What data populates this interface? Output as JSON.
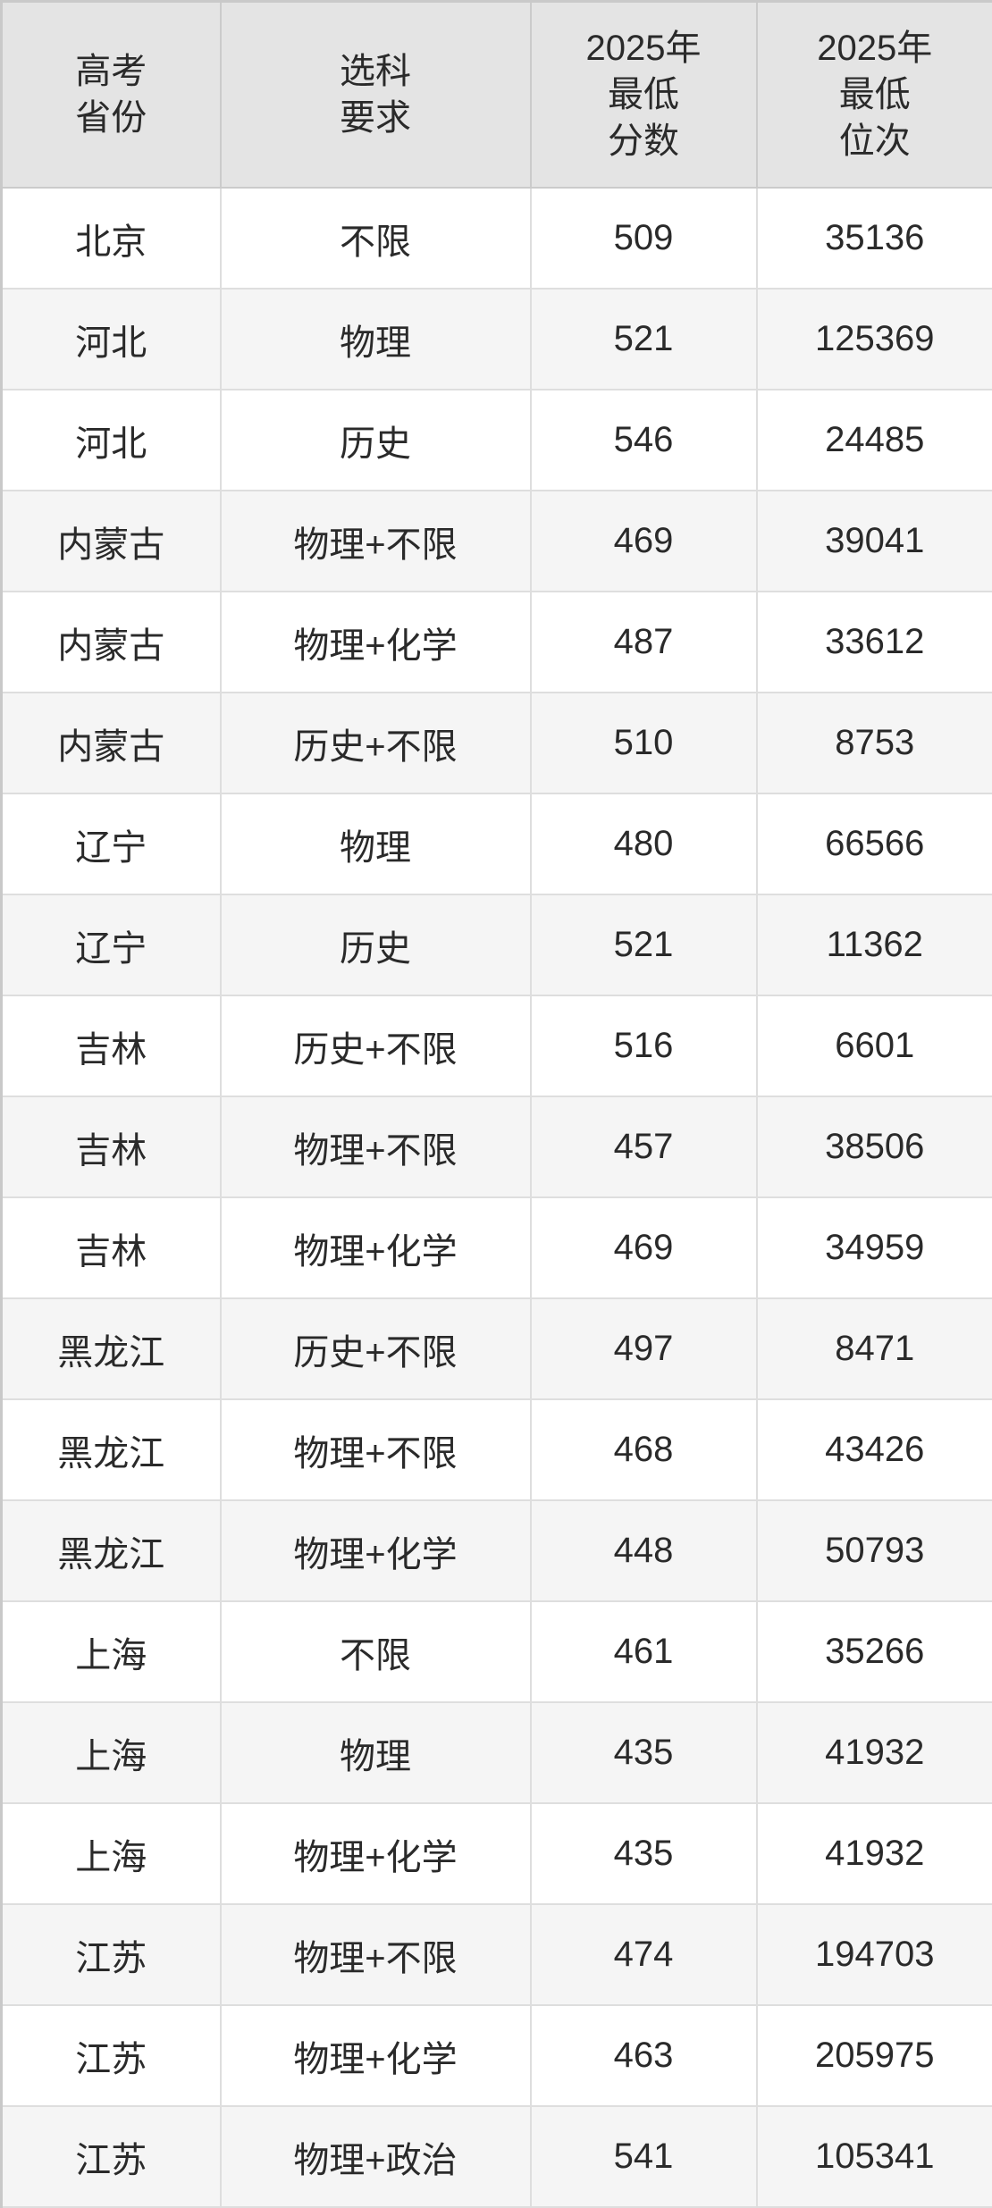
{
  "colors": {
    "header_bg": "#e4e4e4",
    "row_bg": "#ffffff",
    "row_alt_bg": "#f5f5f5",
    "outer_border": "#c9c9c9",
    "inner_border": "#dedede",
    "text": "#2a2a2a"
  },
  "table": {
    "headers": [
      {
        "id": "province",
        "label": "高考\n省份"
      },
      {
        "id": "subjects",
        "label": "选科\n要求"
      },
      {
        "id": "min_score_2025",
        "label": "2025年\n最低\n分数"
      },
      {
        "id": "min_rank_2025",
        "label": "2025年\n最低\n位次"
      }
    ],
    "rows": [
      {
        "province": "北京",
        "subjects": "不限",
        "min_score_2025": "509",
        "min_rank_2025": "35136"
      },
      {
        "province": "河北",
        "subjects": "物理",
        "min_score_2025": "521",
        "min_rank_2025": "125369"
      },
      {
        "province": "河北",
        "subjects": "历史",
        "min_score_2025": "546",
        "min_rank_2025": "24485"
      },
      {
        "province": "内蒙古",
        "subjects": "物理+不限",
        "min_score_2025": "469",
        "min_rank_2025": "39041"
      },
      {
        "province": "内蒙古",
        "subjects": "物理+化学",
        "min_score_2025": "487",
        "min_rank_2025": "33612"
      },
      {
        "province": "内蒙古",
        "subjects": "历史+不限",
        "min_score_2025": "510",
        "min_rank_2025": "8753"
      },
      {
        "province": "辽宁",
        "subjects": "物理",
        "min_score_2025": "480",
        "min_rank_2025": "66566"
      },
      {
        "province": "辽宁",
        "subjects": "历史",
        "min_score_2025": "521",
        "min_rank_2025": "11362"
      },
      {
        "province": "吉林",
        "subjects": "历史+不限",
        "min_score_2025": "516",
        "min_rank_2025": "6601"
      },
      {
        "province": "吉林",
        "subjects": "物理+不限",
        "min_score_2025": "457",
        "min_rank_2025": "38506"
      },
      {
        "province": "吉林",
        "subjects": "物理+化学",
        "min_score_2025": "469",
        "min_rank_2025": "34959"
      },
      {
        "province": "黑龙江",
        "subjects": "历史+不限",
        "min_score_2025": "497",
        "min_rank_2025": "8471"
      },
      {
        "province": "黑龙江",
        "subjects": "物理+不限",
        "min_score_2025": "468",
        "min_rank_2025": "43426"
      },
      {
        "province": "黑龙江",
        "subjects": "物理+化学",
        "min_score_2025": "448",
        "min_rank_2025": "50793"
      },
      {
        "province": "上海",
        "subjects": "不限",
        "min_score_2025": "461",
        "min_rank_2025": "35266"
      },
      {
        "province": "上海",
        "subjects": "物理",
        "min_score_2025": "435",
        "min_rank_2025": "41932"
      },
      {
        "province": "上海",
        "subjects": "物理+化学",
        "min_score_2025": "435",
        "min_rank_2025": "41932"
      },
      {
        "province": "江苏",
        "subjects": "物理+不限",
        "min_score_2025": "474",
        "min_rank_2025": "194703"
      },
      {
        "province": "江苏",
        "subjects": "物理+化学",
        "min_score_2025": "463",
        "min_rank_2025": "205975"
      },
      {
        "province": "江苏",
        "subjects": "物理+政治",
        "min_score_2025": "541",
        "min_rank_2025": "105341"
      }
    ]
  }
}
